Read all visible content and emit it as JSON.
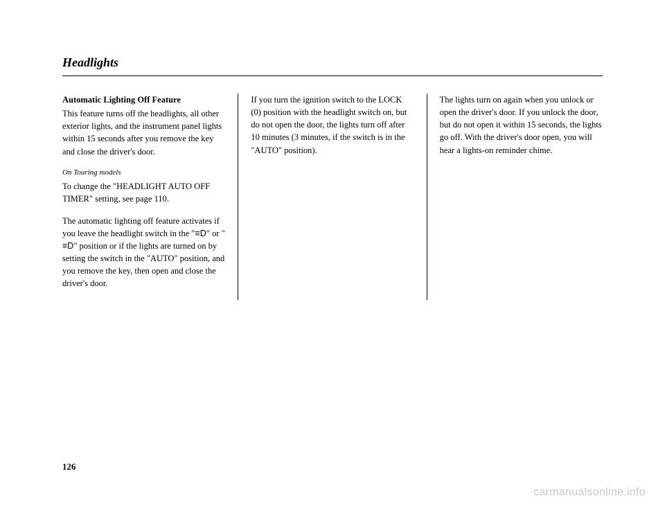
{
  "header": {
    "title": "Headlights"
  },
  "column1": {
    "subtitle": "Automatic Lighting Off Feature",
    "p1": "This feature turns off the headlights, all other exterior lights, and the instrument panel lights within 15 seconds after you remove the key and close the driver's door.",
    "noteLabel": "On Touring models",
    "p2": "To change the \"HEADLIGHT AUTO OFF TIMER\" setting, see page 110.",
    "p3a": "The automatic lighting off feature activates if you leave the headlight switch in the \"",
    "icon1": "≡D",
    "p3b": "\" or \"",
    "icon2": "≡D",
    "p3c": "\" position or if the lights are turned on by setting the switch in the \"AUTO\" position, and you remove the key, then open and close the driver's door."
  },
  "column2": {
    "p1": "If you turn the ignition switch to the LOCK (0) position with the headlight switch on, but do not open the door, the lights turn off after 10 minutes (3 minutes, if the switch is in the \"AUTO\" position)."
  },
  "column3": {
    "p1": "The lights turn on again when you unlock or open the driver's door. If you unlock the door, but do not open it within 15 seconds, the lights go off. With the driver's door open, you will hear a lights-on reminder chime."
  },
  "footer": {
    "pageNumber": "126",
    "watermark": "carmanualsonline.info"
  }
}
